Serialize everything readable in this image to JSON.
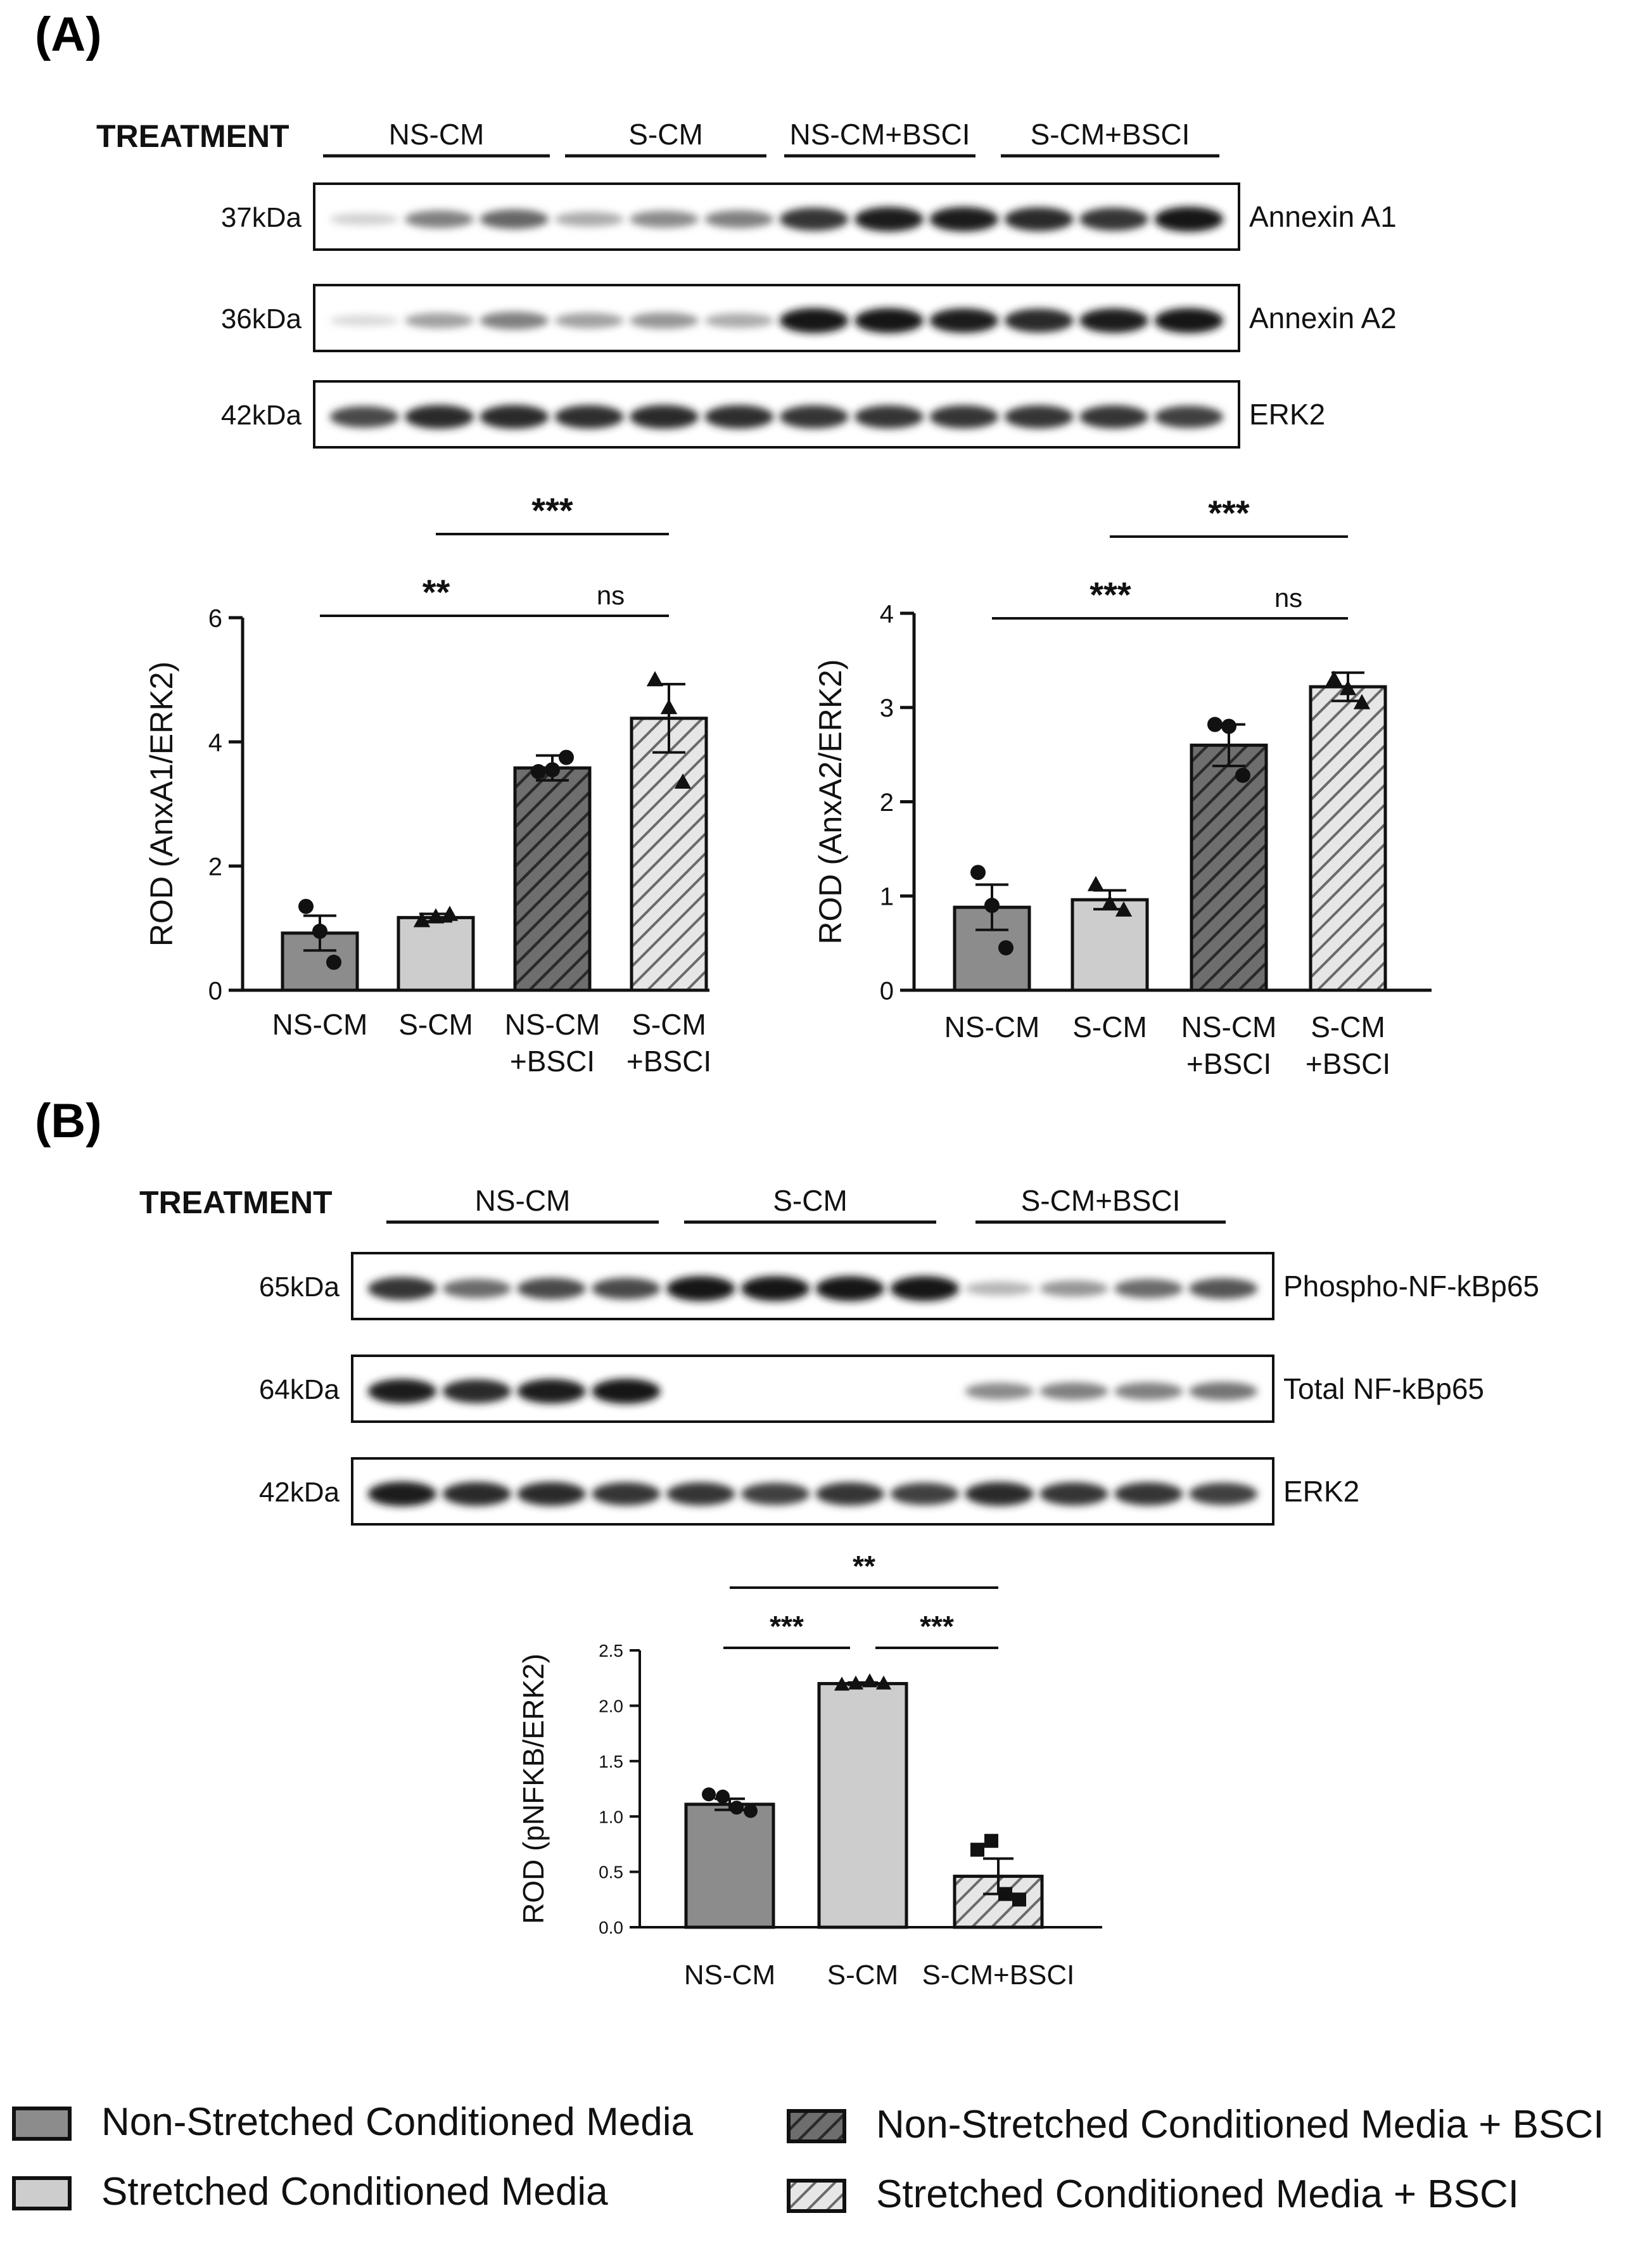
{
  "panels": {
    "a": {
      "label": "(A)"
    },
    "b": {
      "label": "(B)"
    }
  },
  "colors": {
    "ns_cm": "#8c8c8c",
    "s_cm": "#cdcdcd",
    "ns_cm_bsci": "#6e6e6e",
    "s_cm_bsci": "#d8d8d8",
    "axis": "#111111"
  },
  "blot_a": {
    "treatment_label": "TREATMENT",
    "groups": [
      "NS-CM",
      "S-CM",
      "NS-CM+BSCI",
      "S-CM+BSCI"
    ],
    "rows": [
      {
        "mw": "37kDa",
        "protein": "Annexin A1",
        "intensities": [
          0.12,
          0.5,
          0.62,
          0.3,
          0.45,
          0.5,
          0.85,
          0.95,
          0.95,
          0.9,
          0.85,
          0.98
        ]
      },
      {
        "mw": "36kDa",
        "protein": "Annexin A2",
        "intensities": [
          0.08,
          0.35,
          0.5,
          0.35,
          0.4,
          0.3,
          0.98,
          0.98,
          0.95,
          0.9,
          0.95,
          0.98
        ]
      },
      {
        "mw": "42kDa",
        "protein": "ERK2",
        "intensities": [
          0.75,
          0.9,
          0.9,
          0.88,
          0.9,
          0.88,
          0.85,
          0.85,
          0.85,
          0.85,
          0.85,
          0.8
        ]
      }
    ]
  },
  "blot_b": {
    "treatment_label": "TREATMENT",
    "groups": [
      "NS-CM",
      "S-CM",
      "S-CM+BSCI"
    ],
    "rows": [
      {
        "mw": "65kDa",
        "protein": "Phospho-NF-kBp65",
        "intensities": [
          0.85,
          0.6,
          0.75,
          0.75,
          0.98,
          0.98,
          0.98,
          0.98,
          0.25,
          0.4,
          0.6,
          0.7
        ]
      },
      {
        "mw": "64kDa",
        "protein": "Total NF-kBp65",
        "intensities": [
          0.95,
          0.9,
          0.95,
          0.98,
          0,
          0,
          0,
          0,
          0.45,
          0.5,
          0.5,
          0.55
        ]
      },
      {
        "mw": "42kDa",
        "protein": "ERK2",
        "intensities": [
          0.95,
          0.9,
          0.9,
          0.85,
          0.85,
          0.8,
          0.85,
          0.8,
          0.9,
          0.85,
          0.85,
          0.8
        ]
      }
    ]
  },
  "chart_data": [
    {
      "type": "bar",
      "categories": [
        "NS-CM",
        "S-CM",
        "NS-CM\n+BSCI",
        "S-CM\n+BSCI"
      ],
      "values": [
        0.92,
        1.17,
        3.58,
        4.38
      ],
      "sem": [
        0.28,
        0.06,
        0.2,
        0.55
      ],
      "points": [
        [
          1.35,
          0.95,
          0.45
        ],
        [
          1.12,
          1.18,
          1.22
        ],
        [
          3.52,
          3.55,
          3.75
        ],
        [
          5.0,
          4.55,
          3.35
        ]
      ],
      "point_markers": [
        "circle",
        "triangle",
        "circle",
        "triangle"
      ],
      "patterns": [
        "solid",
        "solid",
        "hatch",
        "hatch"
      ],
      "ylabel": "ROD (AnxA1/ERK2)",
      "ylim": [
        0,
        6
      ],
      "yticks": [
        0,
        2,
        4,
        6
      ],
      "significance": [
        {
          "from": 1,
          "to": 3,
          "label": "***"
        },
        {
          "from": 0,
          "to": 2,
          "label": "**"
        },
        {
          "from": 2,
          "to": 3,
          "label": "ns"
        }
      ]
    },
    {
      "type": "bar",
      "categories": [
        "NS-CM",
        "S-CM",
        "NS-CM\n+BSCI",
        "S-CM\n+BSCI"
      ],
      "values": [
        0.88,
        0.96,
        2.6,
        3.22
      ],
      "sem": [
        0.24,
        0.1,
        0.22,
        0.15
      ],
      "points": [
        [
          1.25,
          0.9,
          0.45
        ],
        [
          1.12,
          0.92,
          0.85
        ],
        [
          2.82,
          2.8,
          2.28
        ],
        [
          3.3,
          3.2,
          3.05
        ]
      ],
      "point_markers": [
        "circle",
        "triangle",
        "circle",
        "triangle"
      ],
      "patterns": [
        "solid",
        "solid",
        "hatch",
        "hatch"
      ],
      "ylabel": "ROD (AnxA2/ERK2)",
      "ylim": [
        0,
        4
      ],
      "yticks": [
        0,
        1,
        2,
        3,
        4
      ],
      "significance": [
        {
          "from": 1,
          "to": 3,
          "label": "***"
        },
        {
          "from": 0,
          "to": 2,
          "label": "***"
        },
        {
          "from": 2,
          "to": 3,
          "label": "ns"
        }
      ]
    },
    {
      "type": "bar",
      "categories": [
        "NS-CM",
        "S-CM",
        "S-CM+BSCI"
      ],
      "values": [
        1.11,
        2.2,
        0.46
      ],
      "sem": [
        0.05,
        0.01,
        0.16
      ],
      "points": [
        [
          1.2,
          1.18,
          1.08,
          1.05
        ],
        [
          2.19,
          2.2,
          2.22,
          2.2
        ],
        [
          0.7,
          0.78,
          0.3,
          0.25
        ]
      ],
      "point_markers": [
        "circle",
        "triangle",
        "square"
      ],
      "patterns": [
        "solid",
        "solid",
        "hatch"
      ],
      "ylabel": "ROD (pNFKB/ERK2)",
      "ylim": [
        0,
        2.5
      ],
      "yticks": [
        "0.0",
        "0.5",
        "1.0",
        "1.5",
        "2.0",
        "2.5"
      ],
      "significance": [
        {
          "from": 0,
          "to": 2,
          "label": "**"
        },
        {
          "from": 0,
          "to": 1,
          "label": "***"
        },
        {
          "from": 1,
          "to": 2,
          "label": "***"
        }
      ]
    }
  ],
  "legend": {
    "items": [
      {
        "label": "Non-Stretched Conditioned Media",
        "pattern": "solid",
        "color": "#8c8c8c"
      },
      {
        "label": "Stretched Conditioned Media",
        "pattern": "solid",
        "color": "#cdcdcd"
      },
      {
        "label": "Non-Stretched Conditioned Media + BSCI",
        "pattern": "hatch",
        "color": "#6e6e6e"
      },
      {
        "label": "Stretched Conditioned Media + BSCI",
        "pattern": "hatch",
        "color": "#d8d8d8"
      }
    ]
  }
}
